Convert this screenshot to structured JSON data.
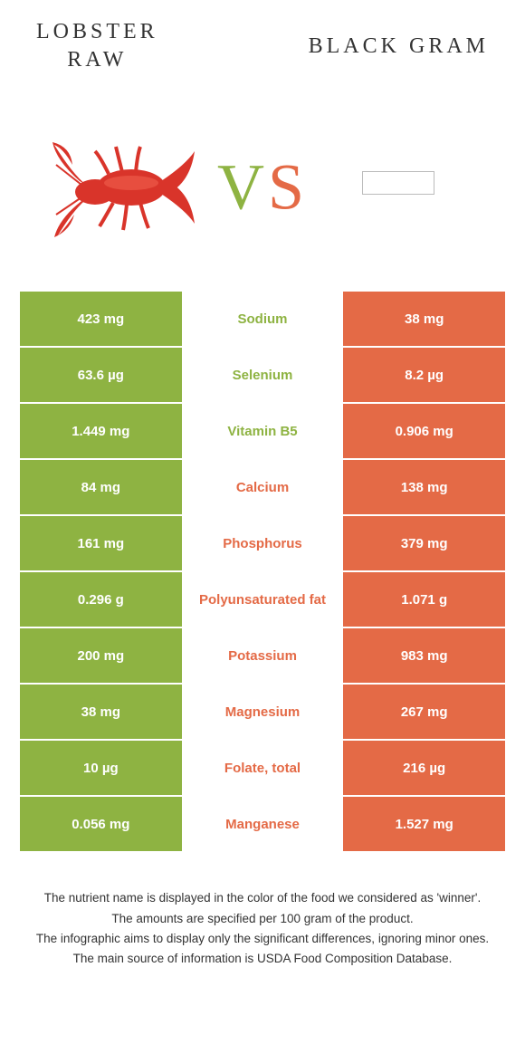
{
  "header": {
    "left_title": "LOBSTER\nRAW",
    "right_title": "BLACK GRAM",
    "vs_text": "VS"
  },
  "colors": {
    "left": "#8eb342",
    "right": "#e46a46",
    "vs_left": "#8eb342",
    "vs_right": "#e46a46"
  },
  "rows": [
    {
      "left": "423 mg",
      "label": "Sodium",
      "right": "38 mg",
      "winner": "left"
    },
    {
      "left": "63.6 µg",
      "label": "Selenium",
      "right": "8.2 µg",
      "winner": "left"
    },
    {
      "left": "1.449 mg",
      "label": "Vitamin B5",
      "right": "0.906 mg",
      "winner": "left"
    },
    {
      "left": "84 mg",
      "label": "Calcium",
      "right": "138 mg",
      "winner": "right"
    },
    {
      "left": "161 mg",
      "label": "Phosphorus",
      "right": "379 mg",
      "winner": "right"
    },
    {
      "left": "0.296 g",
      "label": "Polyunsaturated fat",
      "right": "1.071 g",
      "winner": "right"
    },
    {
      "left": "200 mg",
      "label": "Potassium",
      "right": "983 mg",
      "winner": "right"
    },
    {
      "left": "38 mg",
      "label": "Magnesium",
      "right": "267 mg",
      "winner": "right"
    },
    {
      "left": "10 µg",
      "label": "Folate, total",
      "right": "216 µg",
      "winner": "right"
    },
    {
      "left": "0.056 mg",
      "label": "Manganese",
      "right": "1.527 mg",
      "winner": "right"
    }
  ],
  "footer": {
    "line1": "The nutrient name is displayed in the color of the food we considered as 'winner'.",
    "line2": "The amounts are specified per 100 gram of the product.",
    "line3": "The infographic aims to display only the significant differences, ignoring minor ones.",
    "line4": "The main source of information is USDA Food Composition Database."
  }
}
